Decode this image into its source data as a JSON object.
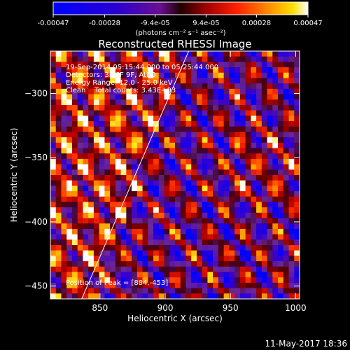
{
  "colorbar": {
    "ticks": [
      "-0.00047",
      "-0.00028",
      "-9.4e-05",
      "9.4e-05",
      "0.00028",
      "0.00047"
    ],
    "tick_values": [
      -0.00047,
      -0.00028,
      -9.4e-05,
      9.4e-05,
      0.00028,
      0.00047
    ],
    "range": [
      -0.00047,
      0.00047
    ],
    "unit_label": "(photons cm⁻² s⁻¹ asec⁻²)",
    "colormap": "rainbow-blue-to-red-yellow-white"
  },
  "chart_data": {
    "type": "heatmap",
    "title": "Reconstructed RHESSI Image",
    "xlabel": "Heliocentric X (arcsec)",
    "ylabel": "Heliocentric Y (arcsec)",
    "xlim": [
      812,
      1003
    ],
    "ylim": [
      -460,
      -267
    ],
    "xticks": [
      850,
      900,
      950,
      1000
    ],
    "yticks": [
      -300,
      -350,
      -400,
      -450
    ],
    "grid": false,
    "limb_line": {
      "x": [
        836,
        918
      ],
      "y": [
        -460,
        -267
      ]
    },
    "annotations": [
      "19-Sep-2014 05:15:44.000 to 05:25:44.000",
      "Detectors: 3F 6F 9F, Att 0",
      "Energy Range: 12.0 - 25.0 keV",
      "Clean    Total counts: 3.43E+03"
    ],
    "peak_label": "Position of Peak = [884,-453]",
    "peak": [
      884,
      -453
    ]
  },
  "footer": {
    "timestamp": "11-May-2017 18:36"
  }
}
